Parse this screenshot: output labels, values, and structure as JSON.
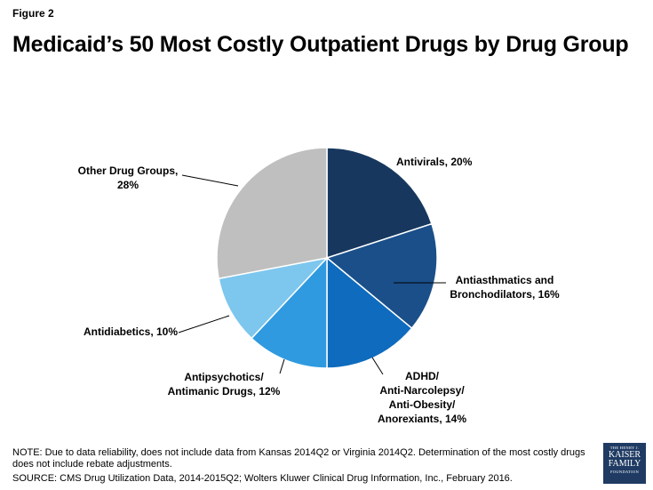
{
  "figure_label": "Figure 2",
  "chart_data": {
    "type": "pie",
    "title": "Medicaid’s 50 Most Costly Outpatient Drugs by Drug Group",
    "slices": [
      {
        "label_lines": [
          "Antivirals, 20%"
        ],
        "value": 20,
        "color": "#17375e"
      },
      {
        "label_lines": [
          "Antiasthmatics and",
          "Bronchodilators, 16%"
        ],
        "value": 16,
        "color": "#1b4f8a"
      },
      {
        "label_lines": [
          "ADHD/",
          "Anti-Narcolepsy/",
          "Anti-Obesity/",
          "Anorexiants, 14%"
        ],
        "value": 14,
        "color": "#0e6bbd"
      },
      {
        "label_lines": [
          "Antipsychotics/",
          "Antimanic Drugs, 12%"
        ],
        "value": 12,
        "color": "#2f9ae0"
      },
      {
        "label_lines": [
          "Antidiabetics, 10%"
        ],
        "value": 10,
        "color": "#7dc6ee"
      },
      {
        "label_lines": [
          "Other Drug Groups,",
          "28%"
        ],
        "value": 28,
        "color": "#bfbfbf"
      }
    ],
    "start": "12 o'clock",
    "direction": "clockwise"
  },
  "note": "NOTE: Due to data reliability, does not include data from Kansas 2014Q2 or Virginia 2014Q2. Determination of the most costly drugs does not include rebate adjustments.",
  "source": "SOURCE: CMS Drug Utilization Data, 2014-2015Q2; Wolters Kluwer Clinical Drug Information, Inc., February 2016.",
  "logo": {
    "line1": "THE HENRY J.",
    "line2": "KAISER",
    "line3": "FAMILY",
    "line4": "FOUNDATION"
  }
}
